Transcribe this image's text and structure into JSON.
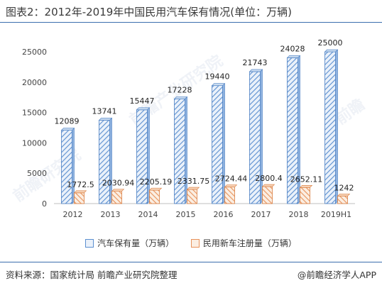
{
  "header": {
    "title": "图表2：2012年-2019年中国民用汽车保有情况(单位：万辆)"
  },
  "chart_data": {
    "type": "bar",
    "categories": [
      "2012",
      "2013",
      "2014",
      "2015",
      "2016",
      "2017",
      "2018",
      "2019H1"
    ],
    "series": [
      {
        "name": "汽车保有量（万辆）",
        "values": [
          12089,
          13741,
          15447,
          17228,
          19440,
          21743,
          24028,
          25000
        ],
        "labels": [
          "12089",
          "13741",
          "15447",
          "17228",
          "19440",
          "21743",
          "24028",
          "25000"
        ],
        "color": "#5b8fd0"
      },
      {
        "name": "民用新车注册量（万辆）",
        "values": [
          1772.5,
          2030.94,
          2205.19,
          2331.75,
          2724.44,
          2800.4,
          2652.11,
          1242
        ],
        "labels": [
          "1772.5",
          "2030.94",
          "2205.19",
          "2331.75",
          "2724.44",
          "2800.4",
          "2652.11",
          "1242"
        ],
        "color": "#e8925a"
      }
    ],
    "yticks": [
      "0",
      "5000",
      "10000",
      "15000",
      "20000",
      "25000"
    ],
    "ylim": [
      0,
      27000
    ],
    "legend_position": "bottom",
    "grid": false
  },
  "footer": {
    "source": "资料来源：国家统计局 前瞻产业研究院整理",
    "brand": "@前瞻经济学人APP"
  }
}
